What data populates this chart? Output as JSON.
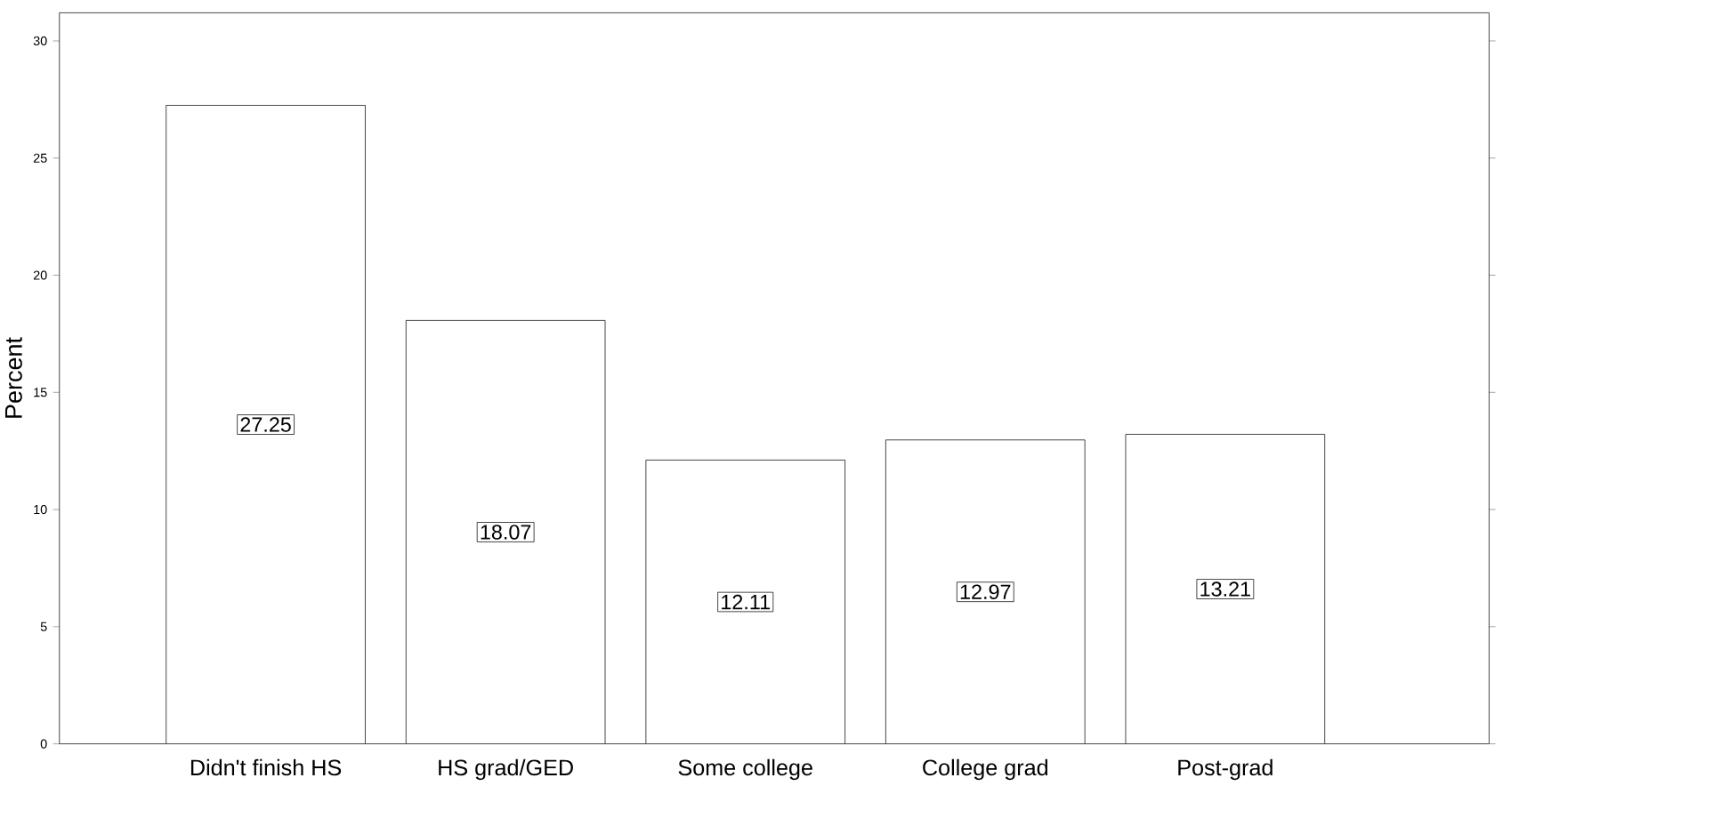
{
  "chart_data": {
    "type": "bar",
    "ylabel": "Percent",
    "categories": [
      "Didn't finish HS",
      "HS grad/GED",
      "Some college",
      "College grad",
      "Post-grad"
    ],
    "values": [
      27.25,
      18.07,
      12.11,
      12.97,
      13.21
    ],
    "color": "#ffffff",
    "ylim": [
      0,
      31.2
    ],
    "yticks": [
      0,
      5,
      10,
      15,
      20,
      25,
      30
    ],
    "data_labels": true
  }
}
